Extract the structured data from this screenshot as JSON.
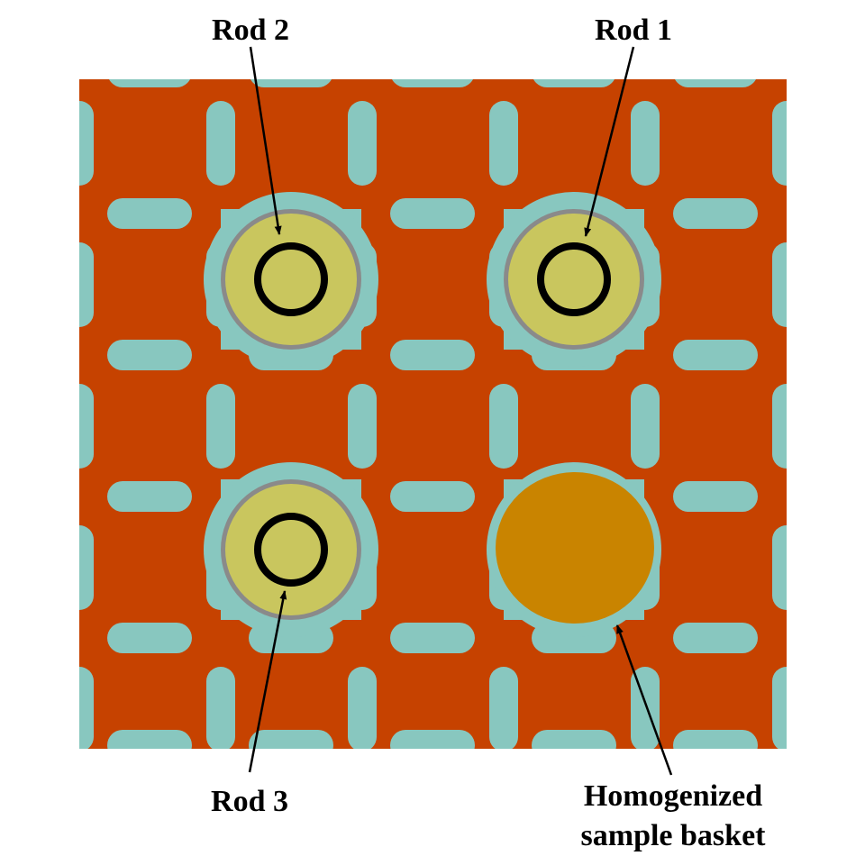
{
  "colors": {
    "background": "#ffffff",
    "matrix": "#c64200",
    "coolant_channel": "#88c7bf",
    "fuel": "#c9c65e",
    "cladding": "#8a8a8a",
    "thin_ring": "#000000",
    "basket": "#c98400",
    "arrow": "#000000"
  },
  "labels": {
    "rod1": "Rod 1",
    "rod2": "Rod 2",
    "rod3": "Rod 3",
    "basket_line1": "Homogenized",
    "basket_line2": "sample basket"
  },
  "cells": [
    {
      "id": "rod2",
      "kind": "rod"
    },
    {
      "id": "rod1",
      "kind": "rod"
    },
    {
      "id": "rod3",
      "kind": "rod"
    },
    {
      "id": "basket",
      "kind": "basket"
    }
  ]
}
